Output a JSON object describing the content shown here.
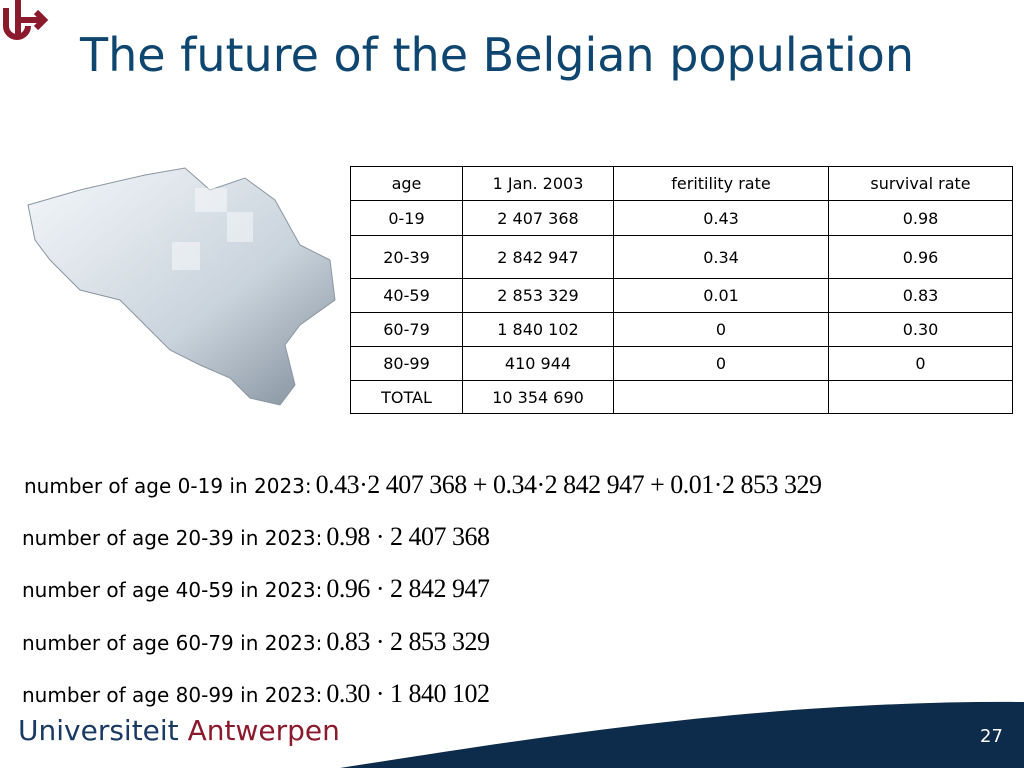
{
  "header": {
    "title": "The future of the Belgian population"
  },
  "table": {
    "columns": [
      "age",
      "1 Jan. 2003",
      "feritility rate",
      "survival rate"
    ],
    "rows": [
      [
        "0-19",
        "2 407 368",
        "0.43",
        "0.98"
      ],
      [
        "20-39",
        "2 842 947",
        "0.34",
        "0.96"
      ],
      [
        "40-59",
        "2 853 329",
        "0.01",
        "0.83"
      ],
      [
        "60-79",
        "1 840 102",
        "0",
        "0.30"
      ],
      [
        "80-99",
        "410 944",
        "0",
        "0"
      ],
      [
        "TOTAL",
        "10 354 690"
      ]
    ]
  },
  "equations": [
    {
      "label": "number of age 0-19 in 2023:",
      "formula": "0.43·2 407 368 + 0.34·2 842 947 + 0.01·2 853 329"
    },
    {
      "label": "number of age 20-39 in 2023:",
      "formula": "0.98 · 2 407 368"
    },
    {
      "label": "number of age 40-59 in 2023:",
      "formula": "0.96 · 2 842 947"
    },
    {
      "label": "number of age 60-79 in 2023:",
      "formula": "0.83 · 2 853 329"
    },
    {
      "label": "number of age 80-99 in 2023:",
      "formula": "0.30 · 1 840 102"
    }
  ],
  "footer": {
    "institution_first": "Universiteit",
    "institution_second": "Antwerpen",
    "page_number": "27"
  }
}
